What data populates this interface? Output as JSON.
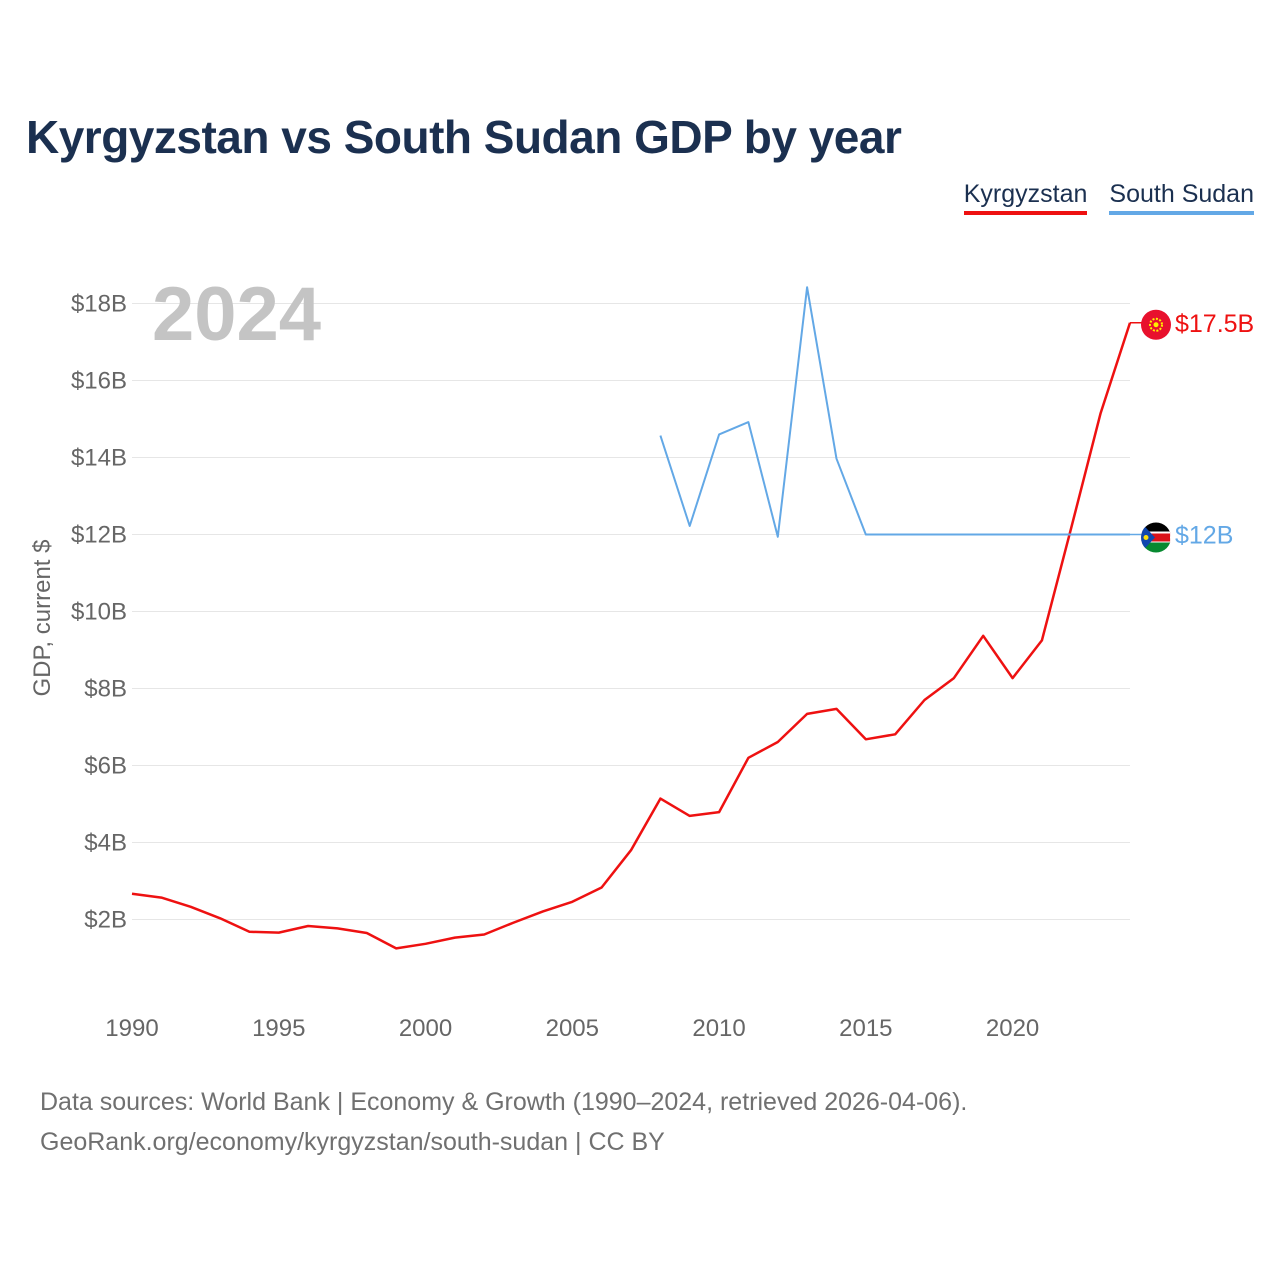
{
  "title": "Kyrgyzstan vs South Sudan GDP by year",
  "legend": [
    {
      "label": "Kyrgyzstan",
      "color": "#ee1111"
    },
    {
      "label": "South Sudan",
      "color": "#63a8e6"
    }
  ],
  "year_label": "2024",
  "footer": {
    "line1": "Data sources: World Bank | Economy & Growth (1990–2024, retrieved 2026-04-06).",
    "line2": "GeoRank.org/economy/kyrgyzstan/south-sudan | CC BY"
  },
  "chart_data": {
    "type": "line",
    "ylabel": "GDP, current $",
    "xlabel": "",
    "xlim": [
      1990,
      2024
    ],
    "ylim": [
      0,
      18
    ],
    "x_ticks": [
      1990,
      1995,
      2000,
      2005,
      2010,
      2015,
      2020
    ],
    "y_ticks": [
      2,
      4,
      6,
      8,
      10,
      12,
      14,
      16,
      18
    ],
    "y_tick_labels": [
      "$2B",
      "$4B",
      "$6B",
      "$8B",
      "$10B",
      "$12B",
      "$14B",
      "$16B",
      "$18B"
    ],
    "grid": true,
    "series": [
      {
        "name": "Kyrgyzstan",
        "color": "#ee1111",
        "end_label": "$17.5B",
        "x": [
          1990,
          1991,
          1992,
          1993,
          1994,
          1995,
          1996,
          1997,
          1998,
          1999,
          2000,
          2001,
          2002,
          2003,
          2004,
          2005,
          2006,
          2007,
          2008,
          2009,
          2010,
          2011,
          2012,
          2013,
          2014,
          2015,
          2016,
          2017,
          2018,
          2019,
          2020,
          2021,
          2022,
          2023,
          2024
        ],
        "values": [
          2.67,
          2.57,
          2.33,
          2.03,
          1.68,
          1.66,
          1.83,
          1.77,
          1.65,
          1.25,
          1.37,
          1.53,
          1.61,
          1.92,
          2.21,
          2.46,
          2.83,
          3.8,
          5.14,
          4.69,
          4.79,
          6.2,
          6.61,
          7.34,
          7.47,
          6.68,
          6.81,
          7.7,
          8.27,
          9.37,
          8.27,
          9.25,
          12.18,
          15.15,
          17.5
        ]
      },
      {
        "name": "South Sudan",
        "color": "#63a8e6",
        "end_label": "$12B",
        "x": [
          2008,
          2009,
          2010,
          2011,
          2012,
          2013,
          2014,
          2015,
          2016,
          2017,
          2018,
          2019,
          2020,
          2021,
          2022,
          2023,
          2024
        ],
        "values": [
          14.57,
          12.22,
          14.6,
          14.92,
          11.94,
          18.42,
          13.97,
          12.0,
          12.0,
          12.0,
          12.0,
          12.0,
          12.0,
          12.0,
          12.0,
          12.0,
          12.0
        ]
      }
    ]
  }
}
